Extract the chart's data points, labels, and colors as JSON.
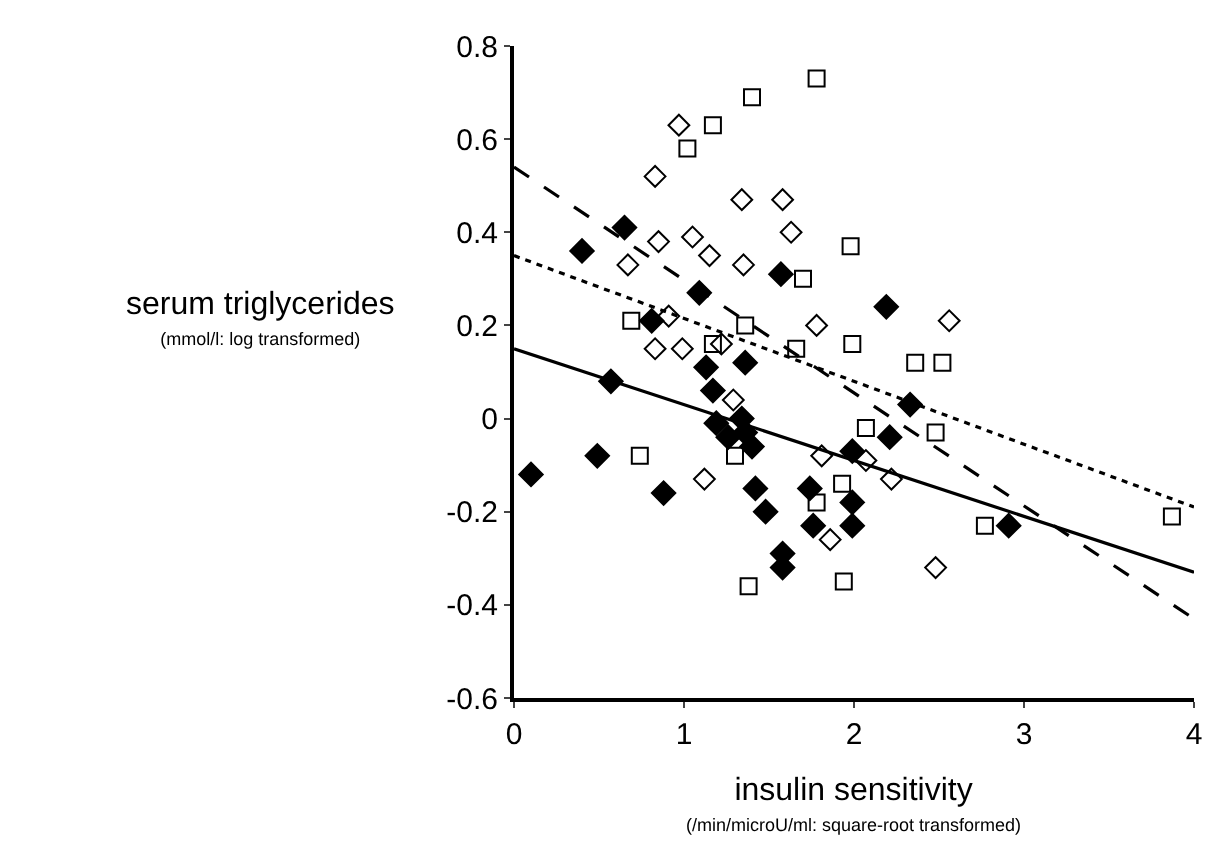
{
  "chart_data": {
    "type": "scatter",
    "xlabel": "insulin sensitivity\n(/min/microU/ml: square-root transformed)",
    "ylabel": "serum triglycerides\n(mmol/l: log transformed)",
    "xlim": [
      0,
      4
    ],
    "xticks": [
      0,
      1,
      2,
      3,
      4
    ],
    "ylim": [
      -0.6,
      0.8
    ],
    "yticks": [
      -0.6,
      -0.4,
      -0.2,
      0,
      0.2,
      0.4,
      0.6,
      0.8
    ],
    "series": [
      {
        "marker": "diamond",
        "color": "#000000",
        "x": [
          0.1,
          0.4,
          0.49,
          0.57,
          0.65,
          0.81,
          0.88,
          1.09,
          1.13,
          1.17,
          1.19,
          1.26,
          1.34,
          1.36,
          1.36,
          1.4,
          1.42,
          1.48,
          1.57,
          1.58,
          1.58,
          1.74,
          1.76,
          1.99,
          1.99,
          1.99,
          2.19,
          2.21,
          2.33,
          2.91
        ],
        "values": [
          -0.12,
          0.36,
          -0.08,
          0.08,
          0.41,
          0.21,
          -0.16,
          0.27,
          0.11,
          0.06,
          -0.01,
          -0.04,
          0.0,
          0.12,
          -0.03,
          -0.06,
          -0.15,
          -0.2,
          0.31,
          -0.29,
          -0.32,
          -0.15,
          -0.23,
          -0.07,
          -0.18,
          -0.23,
          0.24,
          -0.04,
          0.03,
          -0.23
        ]
      },
      {
        "marker": "square",
        "color": "#000000",
        "x": [
          0.69,
          0.74,
          1.02,
          1.17,
          1.17,
          1.3,
          1.36,
          1.38,
          1.4,
          1.66,
          1.7,
          1.78,
          1.78,
          1.93,
          1.94,
          1.98,
          1.99,
          2.07,
          2.36,
          2.48,
          2.52,
          2.77,
          3.87
        ],
        "values": [
          0.21,
          -0.08,
          0.58,
          0.63,
          0.16,
          -0.08,
          0.2,
          -0.36,
          0.69,
          0.15,
          0.3,
          0.73,
          -0.18,
          -0.14,
          -0.35,
          0.37,
          0.16,
          -0.02,
          0.12,
          -0.03,
          0.12,
          -0.23,
          -0.21
        ]
      },
      {
        "marker": "diamond",
        "color": "#000000",
        "x": [
          0.67,
          0.83,
          0.83,
          0.85,
          0.91,
          0.97,
          0.99,
          1.05,
          1.12,
          1.15,
          1.22,
          1.29,
          1.34,
          1.35,
          1.58,
          1.63,
          1.78,
          1.81,
          1.86,
          2.07,
          2.22,
          2.48,
          2.56
        ],
        "values": [
          0.33,
          0.52,
          0.15,
          0.38,
          0.22,
          0.63,
          0.15,
          0.39,
          -0.13,
          0.35,
          0.16,
          0.04,
          0.47,
          0.33,
          0.47,
          0.4,
          0.2,
          -0.08,
          -0.26,
          -0.09,
          -0.13,
          -0.32,
          0.21
        ]
      },
      {
        "type": "line",
        "line_style": "solid",
        "color": "#000000",
        "x": [
          0,
          4
        ],
        "values": [
          0.15,
          -0.33
        ]
      },
      {
        "type": "line",
        "line_style": "dashed",
        "color": "#000000",
        "x": [
          0,
          4
        ],
        "values": [
          0.54,
          -0.43
        ]
      },
      {
        "type": "line",
        "line_style": "dotted",
        "color": "#000000",
        "x": [
          0,
          4
        ],
        "values": [
          0.35,
          -0.19
        ]
      }
    ]
  }
}
